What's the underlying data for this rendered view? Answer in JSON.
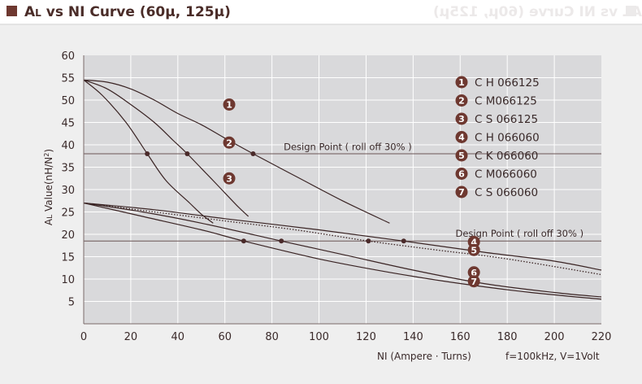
{
  "page": {
    "title": "AL vs NI Curve (60μ, 125μ)",
    "title_prefix": "A",
    "title_sub": "L",
    "title_rest": " vs NI Curve (60μ, 125μ)",
    "ghost_title": "AL vs NI Curve (60μ, 125μ)"
  },
  "chart_data": {
    "type": "line",
    "title": "AL vs NI Curve (60μ, 125μ)",
    "xlabel": "NI (Ampere · Turns)",
    "ylabel": "AL Value(nH/N²)",
    "ylabel_parts": {
      "a": "A",
      "sub": "L",
      "rest": " Value(nH/N",
      "sup": "2",
      "end": ")"
    },
    "conditions": "f=100kHz, V=1Volt",
    "xlim": [
      0,
      220
    ],
    "ylim": [
      0,
      60
    ],
    "x_ticks": [
      0,
      20,
      40,
      60,
      80,
      100,
      120,
      140,
      160,
      180,
      200,
      220
    ],
    "y_ticks": [
      5,
      10,
      15,
      20,
      25,
      30,
      35,
      40,
      45,
      50,
      55,
      60
    ],
    "grid": true,
    "legend_position": "top-right",
    "colors": {
      "plot_bg": "#d9d9db",
      "grid": "#ffffff",
      "curve": "#3a2424",
      "badge": "#6e3830",
      "badge_text": "#ffffff",
      "text": "#3a2a2a",
      "title_square": "#6e3830"
    },
    "series": [
      {
        "name": "C H 066125",
        "legend_marker": "1",
        "style": "solid",
        "points": [
          [
            0,
            54.5
          ],
          [
            10,
            54
          ],
          [
            20,
            52.5
          ],
          [
            30,
            50
          ],
          [
            40,
            47
          ],
          [
            50,
            44.5
          ],
          [
            60,
            41.5
          ],
          [
            72,
            38
          ],
          [
            90,
            33
          ],
          [
            110,
            27.5
          ],
          [
            130,
            22.5
          ]
        ]
      },
      {
        "name": "C M066125",
        "legend_marker": "2",
        "style": "solid",
        "points": [
          [
            0,
            54.5
          ],
          [
            10,
            52.5
          ],
          [
            20,
            49
          ],
          [
            30,
            45
          ],
          [
            38,
            41
          ],
          [
            44,
            38
          ],
          [
            55,
            32
          ],
          [
            65,
            26.5
          ],
          [
            70,
            24
          ]
        ]
      },
      {
        "name": "C S 066125",
        "legend_marker": "3",
        "style": "solid",
        "points": [
          [
            0,
            54.5
          ],
          [
            8,
            51
          ],
          [
            18,
            45
          ],
          [
            27,
            38
          ],
          [
            35,
            32
          ],
          [
            45,
            27
          ],
          [
            50,
            24.5
          ],
          [
            55,
            22.5
          ]
        ]
      },
      {
        "name": "C H 066060",
        "legend_marker": "4",
        "style": "solid",
        "points": [
          [
            0,
            27
          ],
          [
            30,
            25.5
          ],
          [
            60,
            23.5
          ],
          [
            100,
            21
          ],
          [
            136,
            18.5
          ],
          [
            170,
            16
          ],
          [
            200,
            14
          ],
          [
            220,
            12
          ]
        ]
      },
      {
        "name": "C K 066060",
        "legend_marker": "5",
        "style": "dotted",
        "points": [
          [
            0,
            27
          ],
          [
            30,
            25
          ],
          [
            60,
            23
          ],
          [
            90,
            21
          ],
          [
            121,
            18.5
          ],
          [
            150,
            16.5
          ],
          [
            180,
            14.5
          ],
          [
            220,
            11
          ]
        ]
      },
      {
        "name": "C M066060",
        "legend_marker": "6",
        "style": "solid",
        "points": [
          [
            0,
            27
          ],
          [
            25,
            25
          ],
          [
            50,
            22.5
          ],
          [
            84,
            18.5
          ],
          [
            110,
            15.5
          ],
          [
            140,
            12
          ],
          [
            170,
            9
          ],
          [
            200,
            7
          ],
          [
            220,
            6
          ]
        ]
      },
      {
        "name": "C S 066060",
        "legend_marker": "7",
        "style": "solid",
        "points": [
          [
            0,
            27
          ],
          [
            25,
            24
          ],
          [
            50,
            21
          ],
          [
            68,
            18.5
          ],
          [
            100,
            14.5
          ],
          [
            130,
            11.5
          ],
          [
            160,
            9
          ],
          [
            190,
            7
          ],
          [
            220,
            5.5
          ]
        ]
      }
    ],
    "design_points": [
      {
        "label": "Design Point ( roll off 30% )",
        "y": 38,
        "label_x": 85,
        "label_y": 38.8,
        "markers": [
          [
            27,
            38
          ],
          [
            44,
            38
          ],
          [
            72,
            38
          ]
        ]
      },
      {
        "label": "Design Point ( roll off 30% )",
        "y": 18.5,
        "label_x": 158,
        "label_y": 19.5,
        "markers": [
          [
            68,
            18.5
          ],
          [
            84,
            18.5
          ],
          [
            121,
            18.5
          ],
          [
            136,
            18.5
          ]
        ]
      }
    ],
    "curve_badges": [
      {
        "marker": "1",
        "x": 38,
        "y": 49
      },
      {
        "marker": "2",
        "x": 38,
        "y": 40.5
      },
      {
        "marker": "3",
        "x": 38,
        "y": 32.5
      },
      {
        "marker": "4",
        "x": 142,
        "y": 18.3
      },
      {
        "marker": "5",
        "x": 142,
        "y": 16.5
      },
      {
        "marker": "6",
        "x": 142,
        "y": 11.5
      },
      {
        "marker": "7",
        "x": 142,
        "y": 9.5
      }
    ]
  }
}
